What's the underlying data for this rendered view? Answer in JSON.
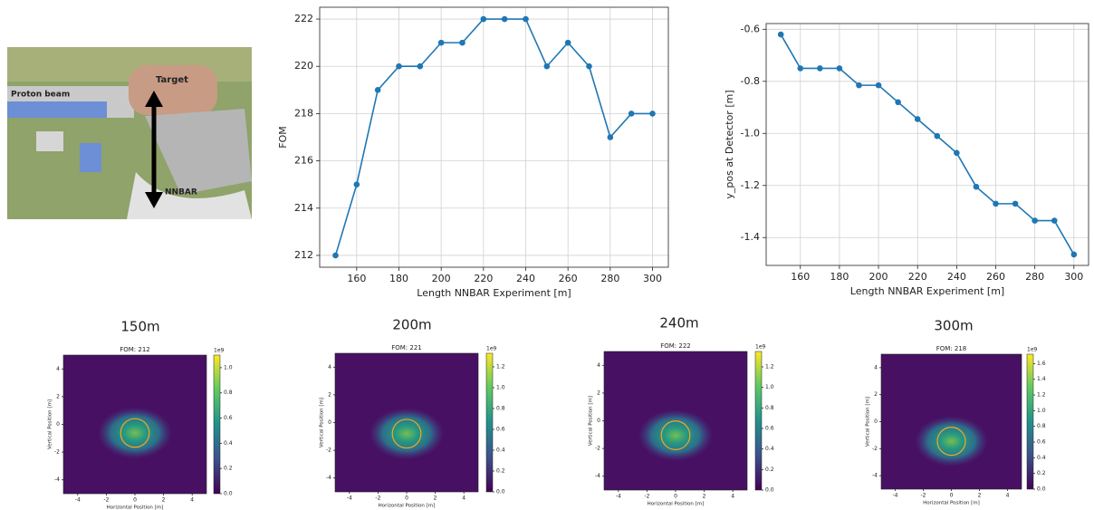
{
  "image": {
    "labels": [
      "Target",
      "Proton beam",
      "NNBAR"
    ]
  },
  "chart_data": [
    {
      "type": "line",
      "xlabel": "Length NNBAR Experiment [m]",
      "ylabel": "FOM",
      "color": "#1f77b4",
      "grid": true,
      "x": [
        150,
        160,
        170,
        180,
        190,
        200,
        210,
        220,
        230,
        240,
        250,
        260,
        270,
        280,
        290,
        300
      ],
      "values": [
        212,
        215,
        219,
        220,
        220,
        221,
        221,
        222,
        222,
        222,
        220,
        221,
        220,
        217,
        218,
        218
      ],
      "xlim": [
        142.5,
        307.5
      ],
      "xticks": [
        160,
        180,
        200,
        220,
        240,
        260,
        280,
        300
      ],
      "ylim": [
        211.5,
        222.5
      ],
      "yticks": [
        212,
        214,
        216,
        218,
        220,
        222
      ]
    },
    {
      "type": "line",
      "xlabel": "Length NNBAR Experiment [m]",
      "ylabel": "y_pos at Detector [m]",
      "color": "#1f77b4",
      "grid": true,
      "x": [
        150,
        160,
        170,
        180,
        190,
        200,
        210,
        220,
        230,
        240,
        250,
        260,
        270,
        280,
        290,
        300
      ],
      "values": [
        -0.62,
        -0.75,
        -0.75,
        -0.75,
        -0.815,
        -0.815,
        -0.88,
        -0.945,
        -1.01,
        -1.075,
        -1.205,
        -1.27,
        -1.27,
        -1.335,
        -1.335,
        -1.465
      ],
      "xlim": [
        142.5,
        307.5
      ],
      "xticks": [
        160,
        180,
        200,
        220,
        240,
        260,
        280,
        300
      ],
      "ylim": [
        -1.507,
        -0.578
      ],
      "yticks": [
        -1.4,
        -1.2,
        {
          "value": -1,
          "label": "-1.0"
        },
        -0.8,
        -0.6
      ]
    },
    {
      "type": "heatmap",
      "title": "150m",
      "subtitle": "FOM: 212",
      "xlabel": "Horizontal Position [m]",
      "ylabel": "Vertical Position [m]",
      "xlim": [
        -5,
        5
      ],
      "ylim": [
        -5,
        5
      ],
      "xticks": [
        -4,
        -2,
        0,
        2,
        4
      ],
      "yticks": [
        -4,
        -2,
        0,
        2,
        4
      ],
      "circle": {
        "x": 0,
        "y": -0.62,
        "r": 1
      },
      "colorbar": {
        "label": "1e9",
        "lim": [
          0,
          1.1
        ],
        "ticks": [
          {
            "value": 0,
            "label": "0.0"
          },
          0.2,
          0.4,
          0.6,
          0.8,
          {
            "value": 1,
            "label": "1.0"
          }
        ]
      }
    },
    {
      "type": "heatmap",
      "title": "200m",
      "subtitle": "FOM: 221",
      "xlabel": "Horizontal Position [m]",
      "ylabel": "Vertical Position [m]",
      "xlim": [
        -5,
        5
      ],
      "ylim": [
        -5,
        5
      ],
      "xticks": [
        -4,
        -2,
        0,
        2,
        4
      ],
      "yticks": [
        -4,
        -2,
        0,
        2,
        4
      ],
      "circle": {
        "x": 0,
        "y": -0.8,
        "r": 1
      },
      "colorbar": {
        "label": "1e9",
        "lim": [
          0,
          1.33
        ],
        "ticks": [
          {
            "value": 0,
            "label": "0.0"
          },
          0.2,
          0.4,
          0.6,
          0.8,
          {
            "value": 1,
            "label": "1.0"
          },
          1.2
        ]
      }
    },
    {
      "type": "heatmap",
      "title": "240m",
      "subtitle": "FOM: 222",
      "xlabel": "Horizontal Position [m]",
      "ylabel": "Vertical Position [m]",
      "xlim": [
        -5,
        5
      ],
      "ylim": [
        -5,
        5
      ],
      "xticks": [
        -4,
        -2,
        0,
        2,
        4
      ],
      "yticks": [
        -4,
        -2,
        0,
        2,
        4
      ],
      "circle": {
        "x": 0,
        "y": -1.05,
        "r": 1
      },
      "colorbar": {
        "label": "1e9",
        "lim": [
          0,
          1.35
        ],
        "ticks": [
          {
            "value": 0,
            "label": "0.0"
          },
          0.2,
          0.4,
          0.6,
          0.8,
          {
            "value": 1,
            "label": "1.0"
          },
          1.2
        ]
      }
    },
    {
      "type": "heatmap",
      "title": "300m",
      "subtitle": "FOM: 218",
      "xlabel": "Horizontal Position [m]",
      "ylabel": "Vertical Position [m]",
      "xlim": [
        -5,
        5
      ],
      "ylim": [
        -5,
        5
      ],
      "xticks": [
        -4,
        -2,
        0,
        2,
        4
      ],
      "yticks": [
        -4,
        -2,
        0,
        2,
        4
      ],
      "circle": {
        "x": 0,
        "y": -1.45,
        "r": 1
      },
      "colorbar": {
        "label": "1e9",
        "lim": [
          0,
          1.72
        ],
        "ticks": [
          {
            "value": 0,
            "label": "0.0"
          },
          0.2,
          0.4,
          0.6,
          0.8,
          {
            "value": 1,
            "label": "1.0"
          },
          1.2,
          1.4,
          1.6
        ]
      }
    }
  ]
}
